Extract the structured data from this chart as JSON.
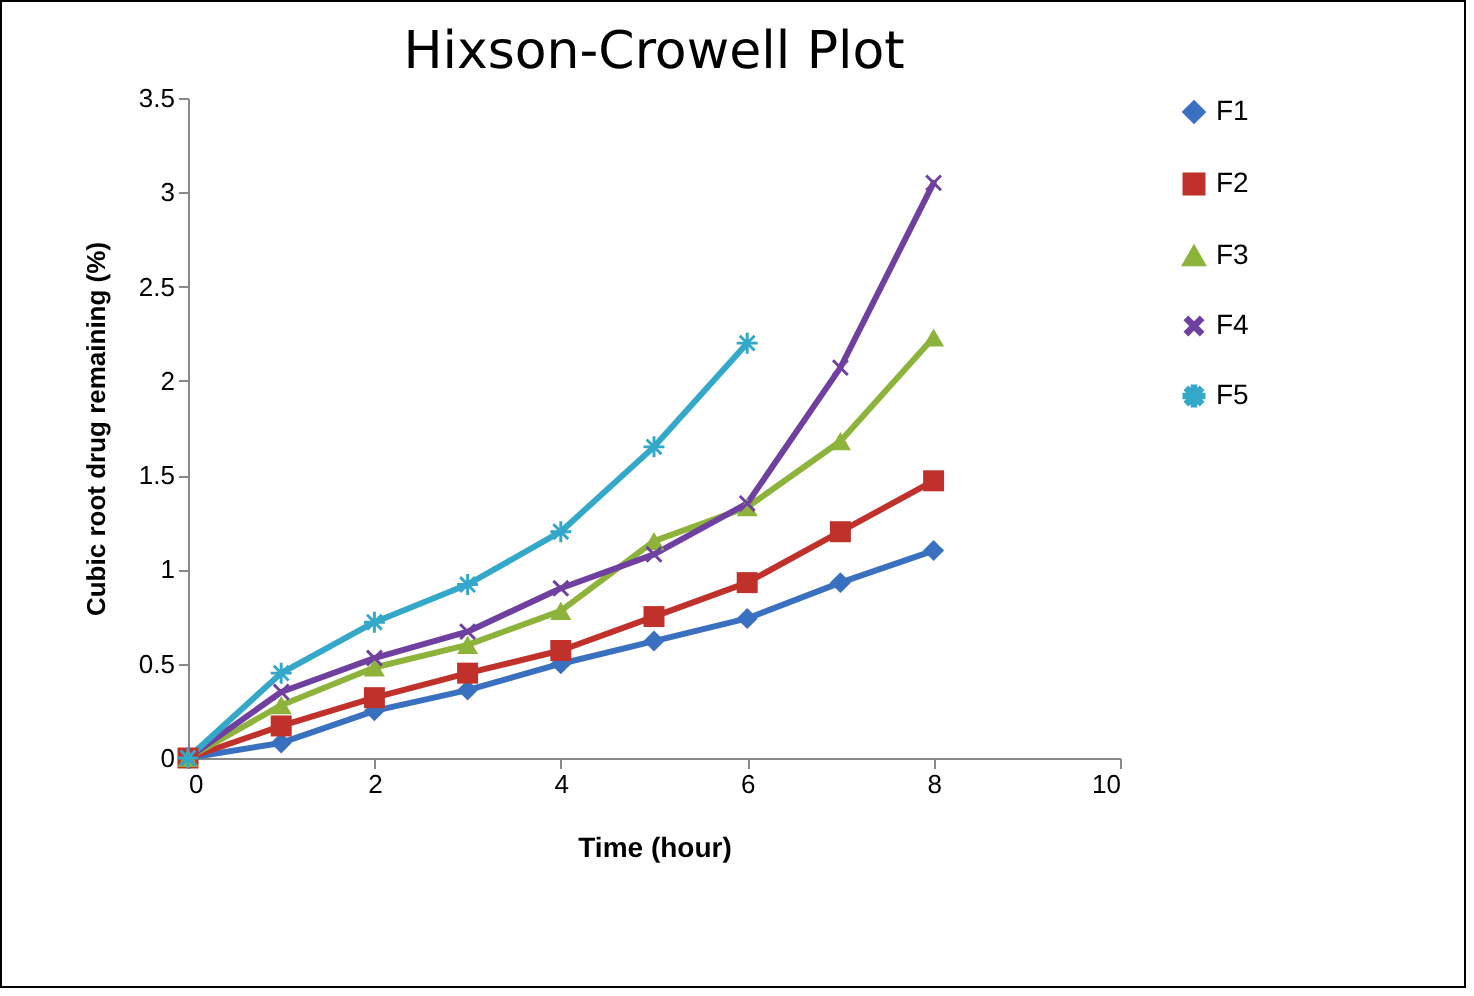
{
  "chart_data": {
    "type": "line",
    "title": "Hixson-Crowell Plot",
    "xlabel": "Time (hour)",
    "ylabel": "Cubic root drug remaining (%)",
    "x": [
      0,
      1,
      2,
      3,
      4,
      5,
      6,
      7,
      8
    ],
    "series": [
      {
        "name": "F1",
        "color": "#3a70c0",
        "marker": "diamond",
        "values": [
          0,
          0.08,
          0.25,
          0.36,
          0.5,
          0.62,
          0.74,
          0.93,
          1.1
        ]
      },
      {
        "name": "F2",
        "color": "#c0312b",
        "marker": "square",
        "values": [
          0,
          0.17,
          0.32,
          0.45,
          0.57,
          0.75,
          0.93,
          1.2,
          1.47
        ]
      },
      {
        "name": "F3",
        "color": "#8db33a",
        "marker": "triangle",
        "values": [
          0,
          0.28,
          0.48,
          0.6,
          0.78,
          1.15,
          1.33,
          1.68,
          2.23
        ]
      },
      {
        "name": "F4",
        "color": "#7040a0",
        "marker": "cross",
        "values": [
          0,
          0.35,
          0.53,
          0.67,
          0.9,
          1.08,
          1.35,
          2.07,
          3.05
        ]
      },
      {
        "name": "F5",
        "color": "#33a8c8",
        "marker": "star",
        "values": [
          0,
          0.45,
          0.72,
          0.92,
          1.2,
          1.65,
          2.2,
          null,
          null
        ]
      }
    ],
    "xlim": [
      0,
      10
    ],
    "xticks": [
      0,
      2,
      4,
      6,
      8,
      10
    ],
    "ylim": [
      0,
      3.5
    ],
    "yticks": [
      0,
      0.5,
      1,
      1.5,
      2,
      2.5,
      3,
      3.5
    ],
    "grid": false,
    "legend": "right",
    "line_style": "solid"
  }
}
